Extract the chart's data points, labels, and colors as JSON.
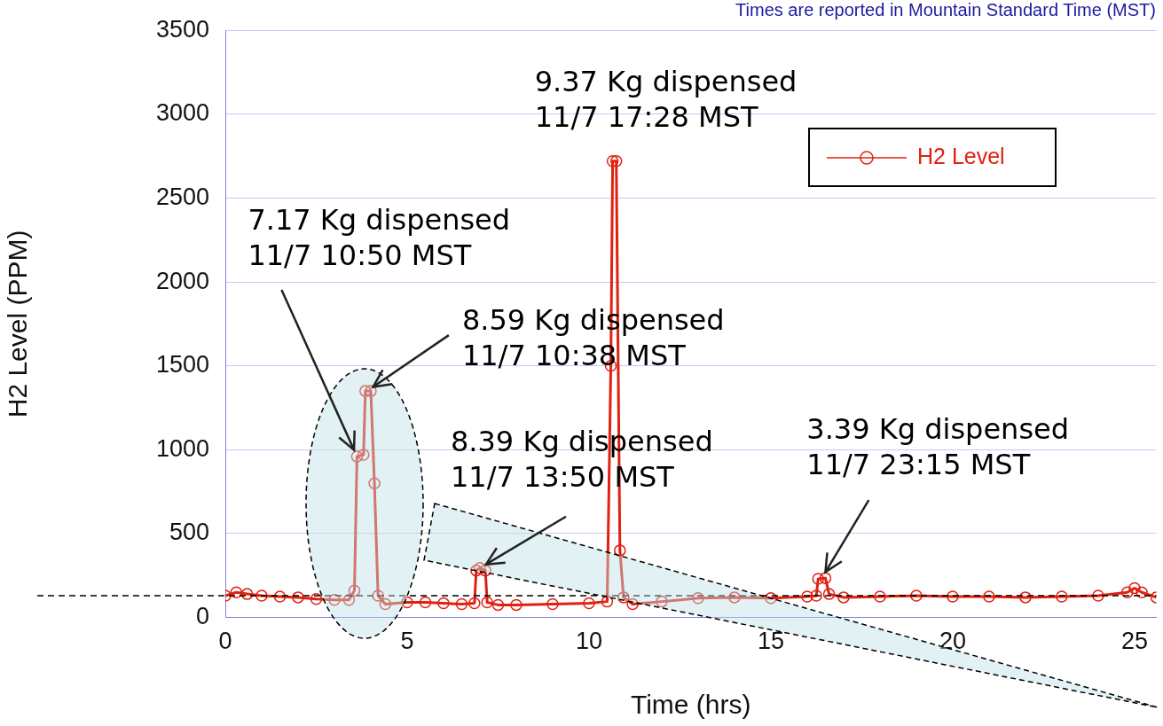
{
  "chart_data": {
    "type": "line",
    "xlabel": "Time (hrs)",
    "ylabel": "H2 Level (PPM)",
    "xlim": [
      0,
      25.6
    ],
    "xticks": [
      0,
      5,
      10,
      15,
      20,
      25
    ],
    "ylim": [
      0,
      3500
    ],
    "yticks": [
      0,
      500,
      1000,
      1500,
      2000,
      2500,
      3000,
      3500
    ],
    "grid": "y",
    "legend": "top right",
    "marker": "circle",
    "line_style": "solid",
    "series": [
      {
        "name": "H2 Level",
        "color": "#e02010",
        "x": [
          0,
          0.3,
          0.6,
          1,
          1.5,
          2,
          2.5,
          3,
          3.4,
          3.55,
          3.62,
          3.8,
          3.85,
          4.0,
          4.1,
          4.2,
          4.4,
          5,
          5.5,
          6,
          6.5,
          6.85,
          6.9,
          7.0,
          7.15,
          7.2,
          7.5,
          8,
          9,
          10,
          10.5,
          10.6,
          10.65,
          10.75,
          10.85,
          10.95,
          11.2,
          12,
          13,
          14,
          15,
          16,
          16.25,
          16.3,
          16.5,
          16.6,
          17,
          18,
          19,
          20,
          21,
          22,
          23,
          24,
          24.8,
          25,
          25.2,
          25.6
        ],
        "values": [
          130,
          150,
          140,
          130,
          125,
          120,
          110,
          105,
          105,
          160,
          960,
          970,
          1350,
          1350,
          800,
          130,
          80,
          90,
          90,
          85,
          80,
          85,
          280,
          295,
          280,
          90,
          75,
          75,
          80,
          85,
          95,
          1500,
          2720,
          2720,
          400,
          120,
          80,
          95,
          115,
          120,
          115,
          125,
          130,
          230,
          235,
          140,
          120,
          125,
          130,
          125,
          125,
          120,
          125,
          130,
          150,
          175,
          150,
          120
        ]
      }
    ],
    "ref_lines": [
      {
        "axis": "y",
        "value": 130,
        "color": "#000000",
        "line_style": "dashed"
      }
    ],
    "annotations": [
      "Times are reported in Mountain Standard Time (MST)",
      {
        "text": "9.37 Kg dispensed\n11/7 17:28 MST",
        "x": 10.7,
        "y": 2720
      },
      {
        "text": "7.17 Kg dispensed\n11/7 10:50 MST",
        "x": 3.62,
        "y": 960
      },
      {
        "text": "8.59 Kg dispensed\n11/7 10:38 MST",
        "x": 3.9,
        "y": 1350
      },
      {
        "text": "8.39 Kg dispensed\n11/7 13:50 MST",
        "x": 7.0,
        "y": 295
      },
      {
        "text": "3.39 Kg dispensed\n11/7 23:15 MST",
        "x": 16.4,
        "y": 235
      }
    ]
  }
}
